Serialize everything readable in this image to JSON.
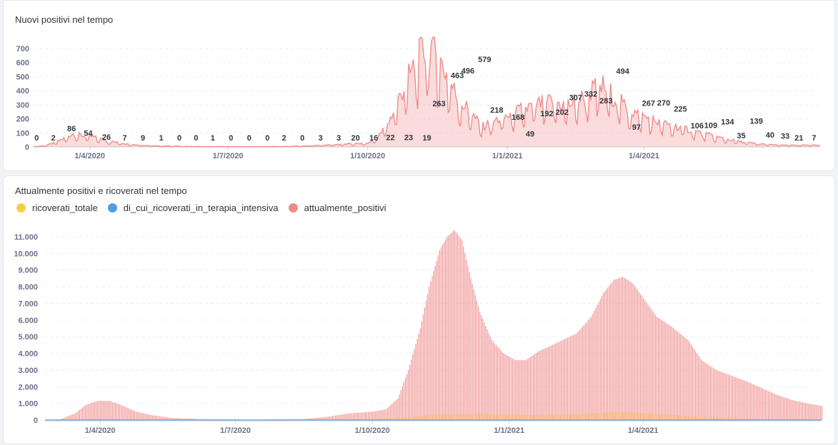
{
  "colors": {
    "ricoverati_totale": "#f9cf48",
    "terapia_intensiva": "#509ee3",
    "attualmente_positivi": "#ef8c8c",
    "grid": "#edf0f3",
    "axis": "#c8ccd3"
  },
  "chart_data": [
    {
      "type": "area",
      "title": "Nuovi positivi nel tempo",
      "x_start": "2020-02-24",
      "x_end": "2021-06-30",
      "ylim": [
        0,
        750
      ],
      "yticks": [
        "0",
        "100",
        "200",
        "300",
        "400",
        "500",
        "600",
        "700"
      ],
      "ytick_values": [
        0,
        100,
        200,
        300,
        400,
        500,
        600,
        700
      ],
      "xticks": [
        {
          "date": "2020-04-01",
          "label": "1/4/2020"
        },
        {
          "date": "2020-07-01",
          "label": "1/7/2020"
        },
        {
          "date": "2020-10-01",
          "label": "1/10/2020"
        },
        {
          "date": "2021-01-01",
          "label": "1/1/2021"
        },
        {
          "date": "2021-04-01",
          "label": "1/4/2021"
        }
      ],
      "series": [
        {
          "name": "nuovi_positivi",
          "color_key": "attualmente_positivi",
          "key_points": [
            [
              "2020-02-24",
              0
            ],
            [
              "2020-03-03",
              10
            ],
            [
              "2020-03-10",
              35
            ],
            [
              "2020-03-15",
              60
            ],
            [
              "2020-03-21",
              95
            ],
            [
              "2020-03-27",
              80
            ],
            [
              "2020-04-02",
              75
            ],
            [
              "2020-04-07",
              60
            ],
            [
              "2020-04-15",
              38
            ],
            [
              "2020-04-25",
              22
            ],
            [
              "2020-05-05",
              12
            ],
            [
              "2020-05-20",
              6
            ],
            [
              "2020-06-10",
              3
            ],
            [
              "2020-07-10",
              2
            ],
            [
              "2020-08-05",
              3
            ],
            [
              "2020-08-20",
              6
            ],
            [
              "2020-09-05",
              14
            ],
            [
              "2020-09-20",
              22
            ],
            [
              "2020-10-01",
              25
            ],
            [
              "2020-10-08",
              70
            ],
            [
              "2020-10-15",
              180
            ],
            [
              "2020-10-22",
              350
            ],
            [
              "2020-10-29",
              520
            ],
            [
              "2020-11-05",
              650
            ],
            [
              "2020-11-11",
              740
            ],
            [
              "2020-11-16",
              640
            ],
            [
              "2020-11-22",
              520
            ],
            [
              "2020-11-30",
              330
            ],
            [
              "2020-12-08",
              250
            ],
            [
              "2020-12-15",
              140
            ],
            [
              "2020-12-22",
              180
            ],
            [
              "2021-01-01",
              220
            ],
            [
              "2021-01-10",
              260
            ],
            [
              "2021-01-20",
              300
            ],
            [
              "2021-01-30",
              320
            ],
            [
              "2021-02-10",
              300
            ],
            [
              "2021-02-18",
              340
            ],
            [
              "2021-02-26",
              400
            ],
            [
              "2021-03-05",
              430
            ],
            [
              "2021-03-10",
              380
            ],
            [
              "2021-03-18",
              300
            ],
            [
              "2021-03-28",
              230
            ],
            [
              "2021-04-05",
              200
            ],
            [
              "2021-04-15",
              160
            ],
            [
              "2021-04-25",
              140
            ],
            [
              "2021-05-05",
              110
            ],
            [
              "2021-05-15",
              80
            ],
            [
              "2021-05-25",
              55
            ],
            [
              "2021-06-05",
              35
            ],
            [
              "2021-06-15",
              22
            ],
            [
              "2021-06-30",
              12
            ]
          ]
        }
      ],
      "data_labels": [
        {
          "date": "2020-02-26",
          "value": 0,
          "text": "0"
        },
        {
          "date": "2020-03-08",
          "value": 2,
          "text": "2"
        },
        {
          "date": "2020-03-20",
          "value": 86,
          "text": "86"
        },
        {
          "date": "2020-03-31",
          "value": 54,
          "text": "54"
        },
        {
          "date": "2020-04-12",
          "value": 26,
          "text": "26"
        },
        {
          "date": "2020-04-24",
          "value": 7,
          "text": "7"
        },
        {
          "date": "2020-05-06",
          "value": 9,
          "text": "9"
        },
        {
          "date": "2020-05-18",
          "value": 1,
          "text": "1"
        },
        {
          "date": "2020-05-30",
          "value": 0,
          "text": "0"
        },
        {
          "date": "2020-06-10",
          "value": 0,
          "text": "0"
        },
        {
          "date": "2020-06-21",
          "value": 1,
          "text": "1"
        },
        {
          "date": "2020-07-03",
          "value": 0,
          "text": "0"
        },
        {
          "date": "2020-07-15",
          "value": 0,
          "text": "0"
        },
        {
          "date": "2020-07-27",
          "value": 0,
          "text": "0"
        },
        {
          "date": "2020-08-07",
          "value": 2,
          "text": "2"
        },
        {
          "date": "2020-08-19",
          "value": 0,
          "text": "0"
        },
        {
          "date": "2020-08-31",
          "value": 3,
          "text": "3"
        },
        {
          "date": "2020-09-12",
          "value": 3,
          "text": "3"
        },
        {
          "date": "2020-09-23",
          "value": 20,
          "text": "20"
        },
        {
          "date": "2020-10-05",
          "value": 16,
          "text": "16"
        },
        {
          "date": "2020-10-16",
          "value": 22,
          "text": "22"
        },
        {
          "date": "2020-10-28",
          "value": 23,
          "text": "23"
        },
        {
          "date": "2020-11-09",
          "value": 19,
          "text": "19"
        },
        {
          "date": "2020-11-17",
          "value": 263,
          "text": "263"
        },
        {
          "date": "2020-11-29",
          "value": 463,
          "text": "463"
        },
        {
          "date": "2020-12-06",
          "value": 496,
          "text": "496"
        },
        {
          "date": "2020-12-17",
          "value": 579,
          "text": "579"
        },
        {
          "date": "2020-12-25",
          "value": 218,
          "text": "218"
        },
        {
          "date": "2021-01-08",
          "value": 168,
          "text": "168"
        },
        {
          "date": "2021-01-16",
          "value": 49,
          "text": "49"
        },
        {
          "date": "2021-01-27",
          "value": 192,
          "text": "192"
        },
        {
          "date": "2021-02-06",
          "value": 202,
          "text": "202"
        },
        {
          "date": "2021-02-15",
          "value": 307,
          "text": "307"
        },
        {
          "date": "2021-02-25",
          "value": 332,
          "text": "332"
        },
        {
          "date": "2021-03-07",
          "value": 283,
          "text": "283"
        },
        {
          "date": "2021-03-18",
          "value": 494,
          "text": "494"
        },
        {
          "date": "2021-03-27",
          "value": 97,
          "text": "97"
        },
        {
          "date": "2021-04-04",
          "value": 267,
          "text": "267"
        },
        {
          "date": "2021-04-14",
          "value": 270,
          "text": "270"
        },
        {
          "date": "2021-04-25",
          "value": 225,
          "text": "225"
        },
        {
          "date": "2021-05-06",
          "value": 106,
          "text": "106"
        },
        {
          "date": "2021-05-15",
          "value": 109,
          "text": "109"
        },
        {
          "date": "2021-05-26",
          "value": 134,
          "text": "134"
        },
        {
          "date": "2021-06-04",
          "value": 35,
          "text": "35"
        },
        {
          "date": "2021-06-14",
          "value": 139,
          "text": "139"
        },
        {
          "date": "2021-06-23",
          "value": 40,
          "text": "40"
        },
        {
          "date": "2021-07-03",
          "value": 33,
          "text": "33"
        },
        {
          "date": "2021-07-12",
          "value": 21,
          "text": "21"
        },
        {
          "date": "2021-07-22",
          "value": 7,
          "text": "7"
        }
      ]
    },
    {
      "type": "bar",
      "title": "Attualmente positivi e ricoverati nel tempo",
      "x_start": "2020-02-24",
      "x_end": "2021-06-30",
      "ylim": [
        0,
        11500
      ],
      "yticks": [
        "0",
        "1.000",
        "2.000",
        "3.000",
        "4.000",
        "5.000",
        "6.000",
        "7.000",
        "8.000",
        "9.000",
        "10.000",
        "11.000"
      ],
      "ytick_values": [
        0,
        1000,
        2000,
        3000,
        4000,
        5000,
        6000,
        7000,
        8000,
        9000,
        10000,
        11000
      ],
      "xticks": [
        {
          "date": "2020-04-01",
          "label": "1/4/2020"
        },
        {
          "date": "2020-07-01",
          "label": "1/7/2020"
        },
        {
          "date": "2020-10-01",
          "label": "1/10/2020"
        },
        {
          "date": "2021-01-01",
          "label": "1/1/2021"
        },
        {
          "date": "2021-04-01",
          "label": "1/4/2021"
        }
      ],
      "legend": [
        {
          "name": "ricoverati_totale",
          "color_key": "ricoverati_totale"
        },
        {
          "name": "di_cui_ricoverati_in_terapia_intensiva",
          "color_key": "terapia_intensiva"
        },
        {
          "name": "attualmente_positivi",
          "color_key": "attualmente_positivi"
        }
      ],
      "series": [
        {
          "name": "attualmente_positivi",
          "color_key": "attualmente_positivi",
          "key_points": [
            [
              "2020-02-24",
              0
            ],
            [
              "2020-03-05",
              50
            ],
            [
              "2020-03-15",
              400
            ],
            [
              "2020-03-22",
              900
            ],
            [
              "2020-03-30",
              1150
            ],
            [
              "2020-04-07",
              1150
            ],
            [
              "2020-04-15",
              900
            ],
            [
              "2020-04-25",
              500
            ],
            [
              "2020-05-05",
              300
            ],
            [
              "2020-05-20",
              120
            ],
            [
              "2020-06-10",
              50
            ],
            [
              "2020-07-15",
              30
            ],
            [
              "2020-08-15",
              60
            ],
            [
              "2020-09-01",
              200
            ],
            [
              "2020-09-15",
              400
            ],
            [
              "2020-10-01",
              500
            ],
            [
              "2020-10-10",
              650
            ],
            [
              "2020-10-18",
              1300
            ],
            [
              "2020-10-25",
              3000
            ],
            [
              "2020-11-02",
              5500
            ],
            [
              "2020-11-08",
              8000
            ],
            [
              "2020-11-15",
              10200
            ],
            [
              "2020-11-20",
              11000
            ],
            [
              "2020-11-25",
              11400
            ],
            [
              "2020-11-30",
              10800
            ],
            [
              "2020-12-06",
              8500
            ],
            [
              "2020-12-12",
              6500
            ],
            [
              "2020-12-20",
              4800
            ],
            [
              "2020-12-28",
              4000
            ],
            [
              "2021-01-05",
              3600
            ],
            [
              "2021-01-12",
              3600
            ],
            [
              "2021-01-20",
              4100
            ],
            [
              "2021-02-01",
              4600
            ],
            [
              "2021-02-15",
              5200
            ],
            [
              "2021-02-25",
              6200
            ],
            [
              "2021-03-05",
              7600
            ],
            [
              "2021-03-12",
              8400
            ],
            [
              "2021-03-18",
              8600
            ],
            [
              "2021-03-25",
              8200
            ],
            [
              "2021-04-01",
              7300
            ],
            [
              "2021-04-10",
              6200
            ],
            [
              "2021-04-20",
              5600
            ],
            [
              "2021-05-01",
              4800
            ],
            [
              "2021-05-10",
              3600
            ],
            [
              "2021-05-20",
              3000
            ],
            [
              "2021-06-01",
              2600
            ],
            [
              "2021-06-10",
              2300
            ],
            [
              "2021-06-20",
              1900
            ],
            [
              "2021-06-30",
              1500
            ],
            [
              "2021-07-10",
              1200
            ],
            [
              "2021-07-20",
              1000
            ],
            [
              "2021-07-30",
              850
            ]
          ]
        },
        {
          "name": "ricoverati_totale",
          "color_key": "ricoverati_totale",
          "key_points": [
            [
              "2020-02-24",
              0
            ],
            [
              "2020-03-25",
              40
            ],
            [
              "2020-04-10",
              40
            ],
            [
              "2020-05-10",
              10
            ],
            [
              "2020-09-15",
              20
            ],
            [
              "2020-10-20",
              120
            ],
            [
              "2020-11-15",
              350
            ],
            [
              "2020-12-15",
              380
            ],
            [
              "2021-01-15",
              300
            ],
            [
              "2021-02-15",
              350
            ],
            [
              "2021-03-15",
              500
            ],
            [
              "2021-04-15",
              350
            ],
            [
              "2021-05-15",
              150
            ],
            [
              "2021-06-15",
              40
            ],
            [
              "2021-07-30",
              20
            ]
          ]
        },
        {
          "name": "di_cui_ricoverati_in_terapia_intensiva",
          "color_key": "terapia_intensiva",
          "key_points": [
            [
              "2020-02-24",
              0
            ],
            [
              "2020-04-01",
              10
            ],
            [
              "2020-11-20",
              40
            ],
            [
              "2021-03-20",
              50
            ],
            [
              "2021-07-30",
              5
            ]
          ]
        }
      ]
    }
  ]
}
